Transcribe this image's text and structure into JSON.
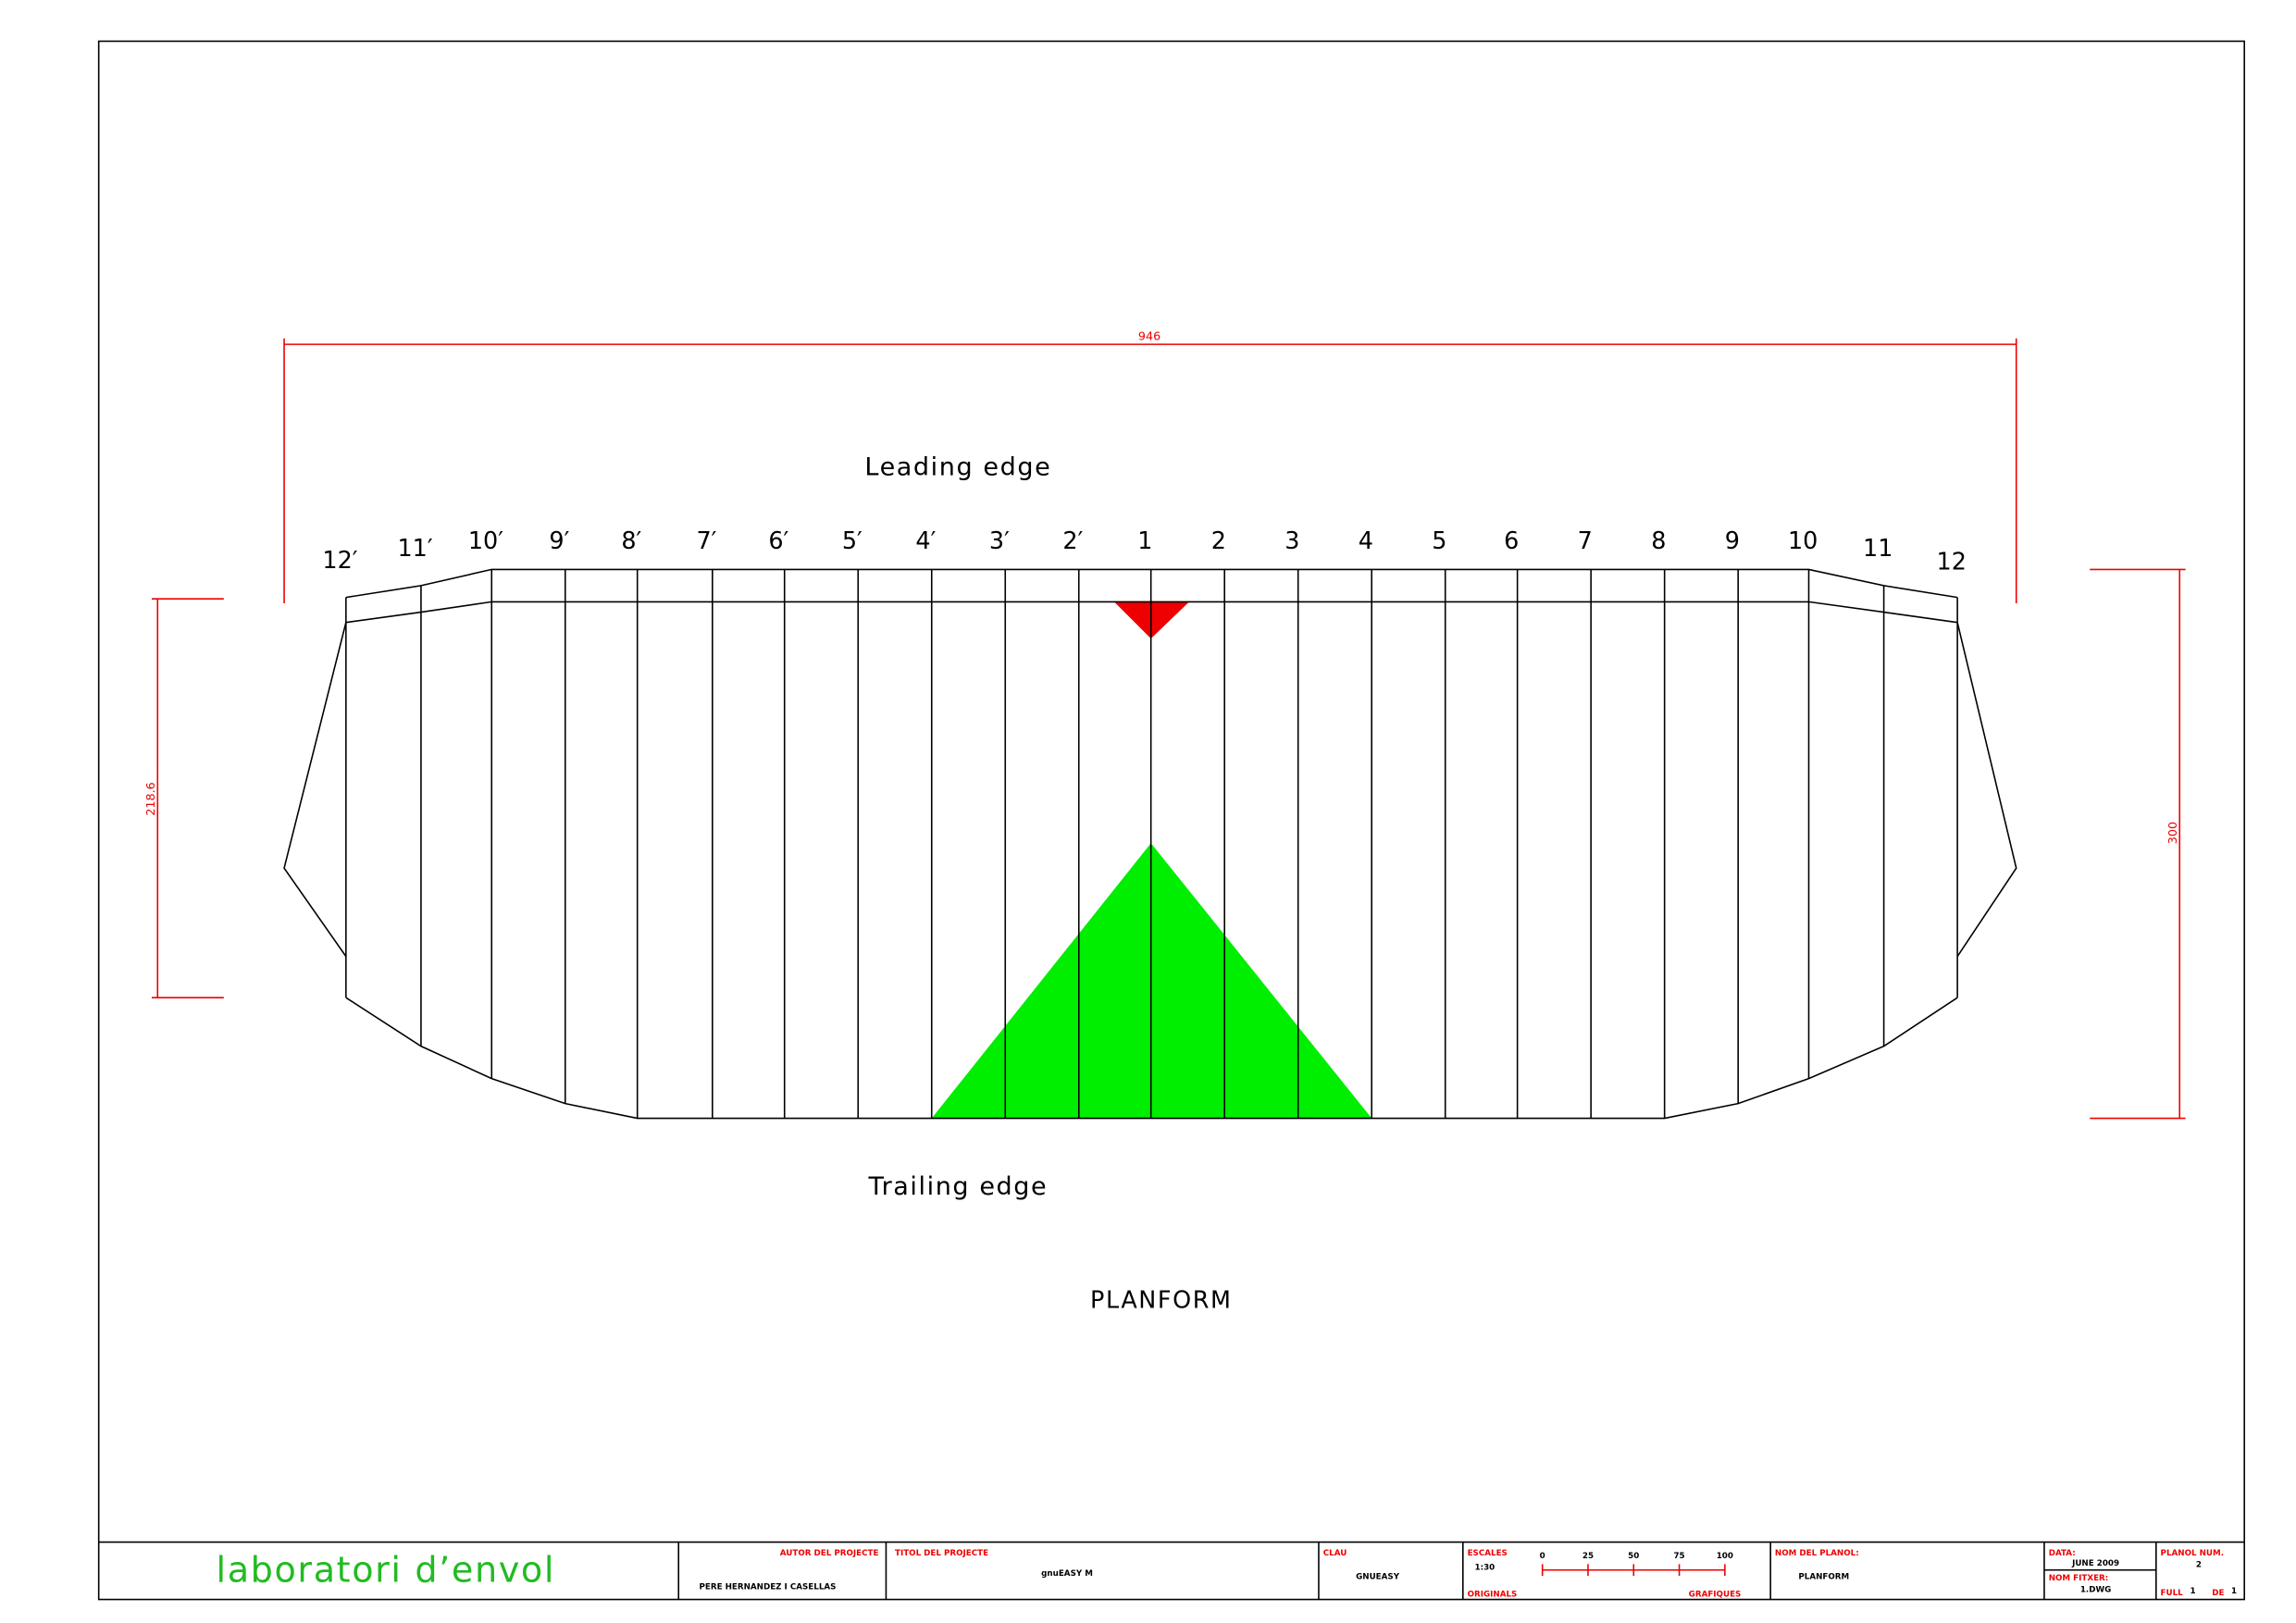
{
  "drawing": {
    "span_dimension": "946",
    "left_dimension": "218.6",
    "right_dimension": "300",
    "leading_edge": "Leading edge",
    "trailing_edge": "Trailing edge",
    "title": "PLANFORM",
    "ribs": [
      "12′",
      "11′",
      "10′",
      "9′",
      "8′",
      "7′",
      "6′",
      "5′",
      "4′",
      "3′",
      "2′",
      "1",
      "2",
      "3",
      "4",
      "5",
      "6",
      "7",
      "8",
      "9",
      "10",
      "11",
      "12"
    ]
  },
  "title_block": {
    "company": "laboratori d’envol",
    "author_label": "AUTOR DEL PROJECTE",
    "author": "PERE HERNANDEZ I CASELLAS",
    "project_label": "TITOL DEL PROJECTE",
    "project": "gnuEASY M",
    "key_label": "CLAU",
    "key": "GNUEASY",
    "scales_label": "ESCALES",
    "scale": "1:30",
    "originals_label": "ORIGINALS",
    "graphics_label": "GRAFIQUES",
    "scale_ticks": [
      0,
      25,
      50,
      75,
      100
    ],
    "plan_name_label": "NOM DEL PLANOL:",
    "plan_name": "PLANFORM",
    "date_label": "DATA:",
    "date": "JUNE 2009",
    "file_label": "NOM FITXER:",
    "file": "1.DWG",
    "plan_num_label": "PLANOL NUM.",
    "plan_num": "2",
    "sheet_label": "FULL",
    "sheet": "1",
    "of_label": "DE",
    "sheets": "1"
  }
}
